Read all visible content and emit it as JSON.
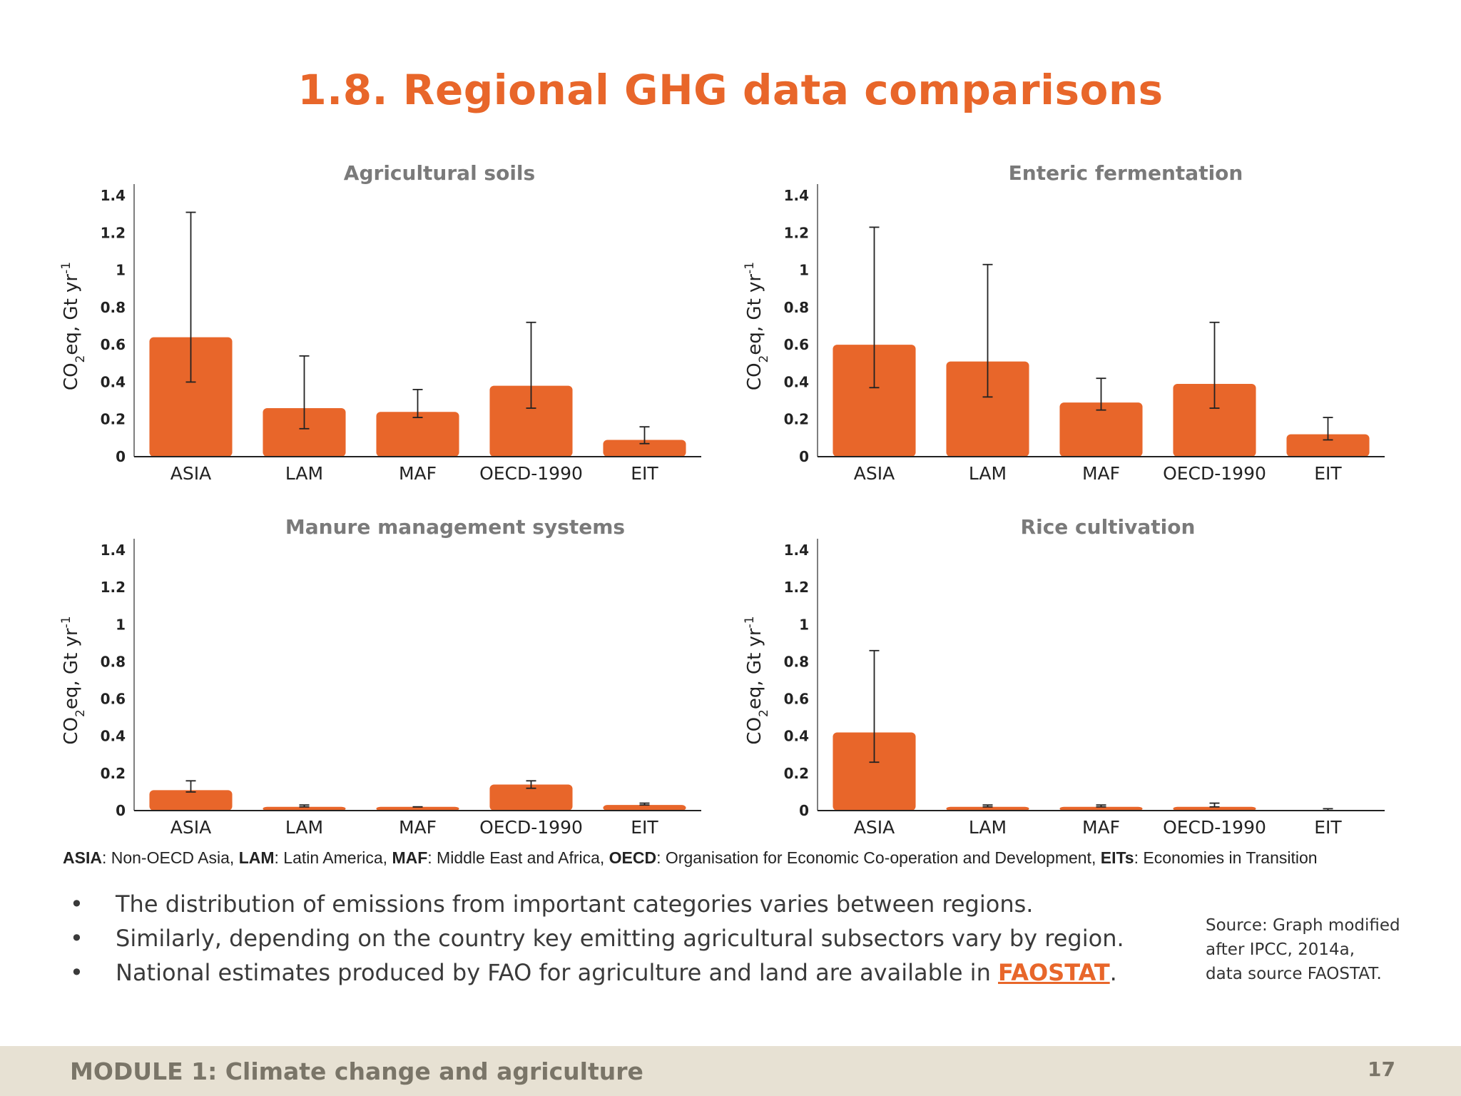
{
  "slide": {
    "title": "1.8. Regional GHG data comparisons"
  },
  "chart_data": [
    {
      "type": "bar",
      "title": "Agricultural soils",
      "ylabel": "CO2eq, Gt yr-1",
      "categories": [
        "ASIA",
        "LAM",
        "MAF",
        "OECD-1990",
        "EIT"
      ],
      "values": [
        0.64,
        0.26,
        0.24,
        0.38,
        0.09
      ],
      "error_low": [
        0.4,
        0.15,
        0.21,
        0.26,
        0.07
      ],
      "error_high": [
        1.31,
        0.54,
        0.36,
        0.72,
        0.16
      ],
      "yticks": [
        "0",
        "0.2",
        "0.4",
        "0.6",
        "0.8",
        "1",
        "1.2",
        "1.4"
      ],
      "ylim": [
        0,
        1.4
      ],
      "color": "#e8662a"
    },
    {
      "type": "bar",
      "title": "Enteric fermentation",
      "ylabel": "CO2eq, Gt yr-1",
      "categories": [
        "ASIA",
        "LAM",
        "MAF",
        "OECD-1990",
        "EIT"
      ],
      "values": [
        0.6,
        0.51,
        0.29,
        0.39,
        0.12
      ],
      "error_low": [
        0.37,
        0.32,
        0.25,
        0.26,
        0.09
      ],
      "error_high": [
        1.23,
        1.03,
        0.42,
        0.72,
        0.21
      ],
      "yticks": [
        "0",
        "0.2",
        "0.4",
        "0.6",
        "0.8",
        "1",
        "1.2",
        "1.4"
      ],
      "ylim": [
        0,
        1.4
      ],
      "color": "#e8662a"
    },
    {
      "type": "bar",
      "title": "Manure management systems",
      "ylabel": "CO2eq, Gt yr-1",
      "categories": [
        "ASIA",
        "LAM",
        "MAF",
        "OECD-1990",
        "EIT"
      ],
      "values": [
        0.11,
        0.02,
        0.02,
        0.14,
        0.03
      ],
      "error_low": [
        0.1,
        0.02,
        0.02,
        0.12,
        0.03
      ],
      "error_high": [
        0.16,
        0.03,
        0.02,
        0.16,
        0.04
      ],
      "yticks": [
        "0",
        "0.2",
        "0.4",
        "0.6",
        "0.8",
        "1",
        "1.2",
        "1.4"
      ],
      "ylim": [
        0,
        1.4
      ],
      "color": "#e8662a"
    },
    {
      "type": "bar",
      "title": "Rice cultivation",
      "ylabel": "CO2eq, Gt yr-1",
      "categories": [
        "ASIA",
        "LAM",
        "MAF",
        "OECD-1990",
        "EIT"
      ],
      "values": [
        0.42,
        0.02,
        0.02,
        0.02,
        0.0
      ],
      "error_low": [
        0.26,
        0.02,
        0.02,
        0.02,
        0.0
      ],
      "error_high": [
        0.86,
        0.03,
        0.03,
        0.04,
        0.01
      ],
      "yticks": [
        "0",
        "0.2",
        "0.4",
        "0.6",
        "0.8",
        "1",
        "1.2",
        "1.4"
      ],
      "ylim": [
        0,
        1.4
      ],
      "color": "#e8662a"
    }
  ],
  "legend": {
    "items": [
      {
        "abbr": "ASIA",
        "desc": ": Non-OECD Asia, "
      },
      {
        "abbr": "LAM",
        "desc": ": Latin America, "
      },
      {
        "abbr": "MAF",
        "desc": ": Middle East and Africa, "
      },
      {
        "abbr": "OECD",
        "desc": ": Organisation for Economic Co-operation and Development, "
      },
      {
        "abbr": "EITs",
        "desc": ": Economies in Transition"
      }
    ]
  },
  "bullets": {
    "marker": "•",
    "items": [
      "The distribution of emissions from important categories varies between regions.",
      "Similarly, depending on the country key emitting agricultural subsectors vary by region.",
      "National estimates produced by FAO for agriculture and land are available in "
    ],
    "link_text": "FAOSTAT",
    "link_suffix": "."
  },
  "source": {
    "lines": [
      "Source: Graph modified",
      "after IPCC, 2014a,",
      "data source FAOSTAT."
    ]
  },
  "footer": {
    "module": "MODULE 1: Climate change and agriculture",
    "page": "17"
  }
}
